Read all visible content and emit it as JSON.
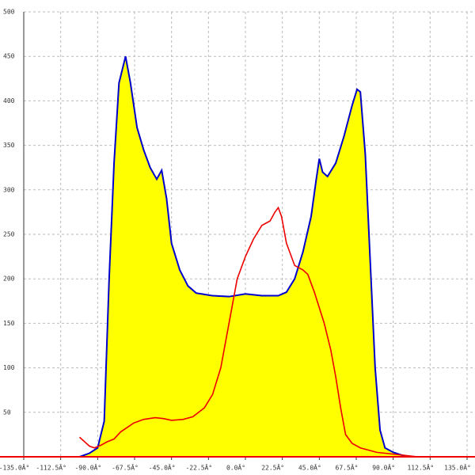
{
  "chart_data": {
    "type": "area",
    "x": [
      -101,
      -95,
      -90,
      -86,
      -83,
      -80,
      -77,
      -73,
      -70,
      -66,
      -62,
      -58,
      -54,
      -51,
      -48,
      -45,
      -40,
      -35,
      -30,
      -20,
      -10,
      0,
      10,
      20,
      25,
      30,
      35,
      40,
      43,
      45,
      47,
      50,
      55,
      60,
      65,
      68,
      70,
      73,
      76,
      79,
      82,
      85,
      90,
      95,
      100
    ],
    "series": [
      {
        "type": "area",
        "color": "#ffff00",
        "line_color": "#0000cc",
        "values": [
          0,
          4,
          10,
          40,
          200,
          330,
          420,
          450,
          420,
          370,
          345,
          325,
          312,
          322,
          290,
          240,
          210,
          192,
          184,
          181,
          180,
          183,
          181,
          181,
          185,
          200,
          230,
          270,
          310,
          335,
          320,
          315,
          330,
          360,
          395,
          413,
          410,
          340,
          220,
          100,
          30,
          10,
          5,
          2,
          0
        ]
      },
      {
        "type": "line",
        "color": "#ee0000",
        "x": [
          -101,
          -95,
          -92,
          -88,
          -84,
          -80,
          -76,
          -72,
          -68,
          -62,
          -55,
          -50,
          -45,
          -38,
          -32,
          -25,
          -20,
          -15,
          -12,
          -8,
          -5,
          0,
          5,
          10,
          15,
          18,
          20,
          22,
          25,
          30,
          35,
          38,
          42,
          48,
          52,
          55,
          58,
          61,
          65,
          70,
          80,
          90,
          100,
          105
        ],
        "values": [
          22,
          12,
          10,
          13,
          17,
          20,
          28,
          33,
          38,
          42,
          44,
          43,
          41,
          42,
          45,
          55,
          70,
          100,
          130,
          170,
          200,
          225,
          245,
          260,
          265,
          275,
          280,
          270,
          240,
          215,
          210,
          205,
          185,
          150,
          120,
          90,
          55,
          25,
          15,
          10,
          5,
          3,
          1,
          0
        ]
      }
    ],
    "xlim": [
      -135,
      135
    ],
    "xticks": [
      {
        "value": -135,
        "label": "-135.0Â°"
      },
      {
        "value": -112.5,
        "label": "-112.5Â°"
      },
      {
        "value": -90,
        "label": "-90.0Â°"
      },
      {
        "value": -67.5,
        "label": "-67.5Â°"
      },
      {
        "value": -45,
        "label": "-45.0Â°"
      },
      {
        "value": -22.5,
        "label": "-22.5Â°"
      },
      {
        "value": 0,
        "label": "0.0Â°"
      },
      {
        "value": 22.5,
        "label": "22.5Â°"
      },
      {
        "value": 45,
        "label": "45.0Â°"
      },
      {
        "value": 67.5,
        "label": "67.5Â°"
      },
      {
        "value": 90,
        "label": "90.0Â°"
      },
      {
        "value": 112.5,
        "label": "112.5Â°"
      },
      {
        "value": 135,
        "label": "135.0Â°"
      }
    ],
    "ylim": [
      0,
      500
    ],
    "yticks": [
      50,
      100,
      150,
      200,
      250,
      300,
      350,
      400,
      450,
      500
    ],
    "grid": true
  }
}
